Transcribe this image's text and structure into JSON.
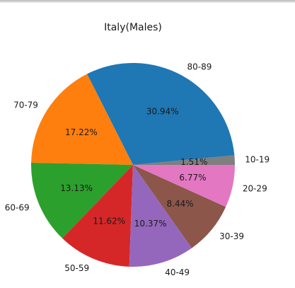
{
  "chart_data": {
    "type": "pie",
    "title": "Italy(Males)",
    "start_angle_deg": 0,
    "direction": "counterclockwise",
    "slices": [
      {
        "label": "10-19",
        "value": 1.51,
        "pct_label": "1.51%",
        "color": "#7f7f7f"
      },
      {
        "label": "80-89",
        "value": 30.94,
        "pct_label": "30.94%",
        "color": "#1f77b4"
      },
      {
        "label": "70-79",
        "value": 17.22,
        "pct_label": "17.22%",
        "color": "#ff7f0e"
      },
      {
        "label": "60-69",
        "value": 13.13,
        "pct_label": "13.13%",
        "color": "#2ca02c"
      },
      {
        "label": "50-59",
        "value": 11.62,
        "pct_label": "11.62%",
        "color": "#d62728"
      },
      {
        "label": "40-49",
        "value": 10.37,
        "pct_label": "10.37%",
        "color": "#9467bd"
      },
      {
        "label": "30-39",
        "value": 8.44,
        "pct_label": "8.44%",
        "color": "#8c564b"
      },
      {
        "label": "20-29",
        "value": 6.77,
        "pct_label": "6.77%",
        "color": "#e377c2"
      }
    ]
  }
}
